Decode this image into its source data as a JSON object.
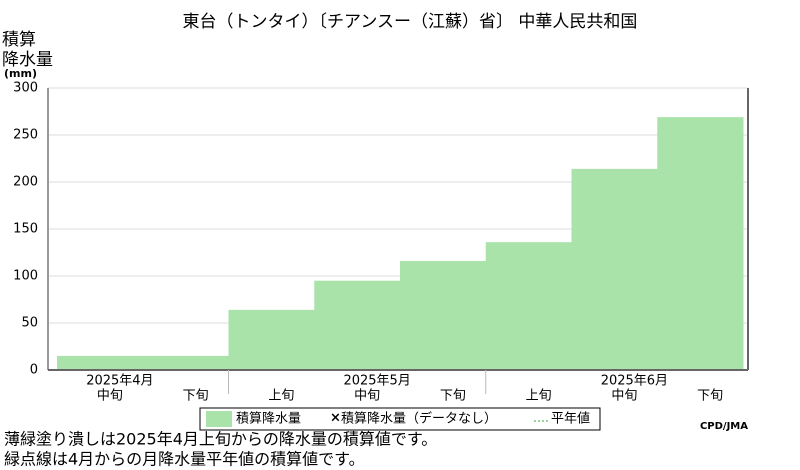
{
  "chart_data": {
    "type": "step-area",
    "title": "東台（トンタイ）〔チアンスー（江蘇）省〕 中華人民共和国",
    "y_label": [
      "積算",
      "降水量",
      "(mm)"
    ],
    "groups": [
      {
        "label": "2025年4月",
        "categories": [
          "中旬",
          "下旬"
        ]
      },
      {
        "label": "2025年5月",
        "categories": [
          "上旬",
          "中旬",
          "下旬"
        ]
      },
      {
        "label": "2025年6月",
        "categories": [
          "上旬",
          "中旬",
          "下旬"
        ]
      }
    ],
    "series": [
      {
        "name": "積算降水量",
        "color": "#aae3aa",
        "values": [
          15,
          15,
          64,
          95,
          116,
          136,
          214,
          269
        ]
      }
    ],
    "legend_extra": [
      "積算降水量（データなし）",
      "平年値"
    ],
    "ylim": [
      0,
      300
    ],
    "yticks": [
      0,
      50,
      100,
      150,
      200,
      250,
      300
    ],
    "grid": true,
    "credit": "CPD/JMA",
    "notes": [
      "薄緑塗り潰しは2025年4月上旬からの降水量の積算値です。",
      "緑点線は4月からの月降水量平年値の積算値です。"
    ]
  }
}
